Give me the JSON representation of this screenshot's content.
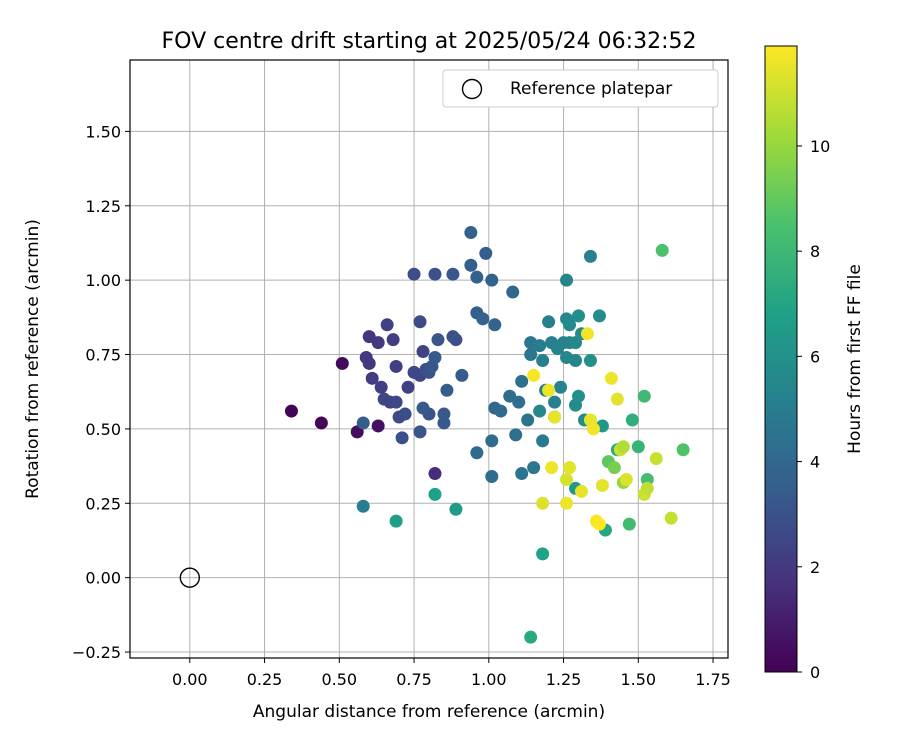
{
  "chart_data": {
    "type": "scatter",
    "title": "FOV centre drift starting at 2025/05/24 06:32:52",
    "xlabel": "Angular distance from reference (arcmin)",
    "ylabel": "Rotation from reference (arcmin)",
    "xlim": [
      -0.2,
      1.8
    ],
    "ylim": [
      -0.27,
      1.74
    ],
    "xticks": [
      0.0,
      0.25,
      0.5,
      0.75,
      1.0,
      1.25,
      1.5,
      1.75
    ],
    "xtick_labels": [
      "0.00",
      "0.25",
      "0.50",
      "0.75",
      "1.00",
      "1.25",
      "1.50",
      "1.75"
    ],
    "yticks": [
      -0.25,
      0.0,
      0.25,
      0.5,
      0.75,
      1.0,
      1.25,
      1.5
    ],
    "ytick_labels": [
      "−0.25",
      "0.00",
      "0.25",
      "0.50",
      "0.75",
      "1.00",
      "1.25",
      "1.50"
    ],
    "grid": true,
    "legend": {
      "position": "top-right",
      "entries": [
        {
          "label": "Reference platepar",
          "marker": "open-circle"
        }
      ]
    },
    "reference_point": {
      "x": 0.0,
      "y": 0.0
    },
    "colorbar": {
      "label": "Hours from first FF file",
      "colormap": "viridis",
      "min": 0,
      "max": 11.9,
      "ticks": [
        0,
        2,
        4,
        6,
        8,
        10
      ],
      "tick_labels": [
        "0",
        "2",
        "4",
        "6",
        "8",
        "10"
      ],
      "colors": [
        "#440154",
        "#46327e",
        "#365c8d",
        "#277f8e",
        "#1fa187",
        "#4ac16d",
        "#a0da39",
        "#fde725"
      ]
    },
    "points": [
      {
        "x": 0.34,
        "y": 0.56,
        "c": 0.1
      },
      {
        "x": 0.44,
        "y": 0.52,
        "c": 0.2
      },
      {
        "x": 0.51,
        "y": 0.72,
        "c": 0.3
      },
      {
        "x": 0.56,
        "y": 0.49,
        "c": 0.4
      },
      {
        "x": 0.63,
        "y": 0.51,
        "c": 0.6
      },
      {
        "x": 0.82,
        "y": 0.35,
        "c": 1.5
      },
      {
        "x": 0.6,
        "y": 0.81,
        "c": 1.8
      },
      {
        "x": 0.59,
        "y": 0.74,
        "c": 2.0
      },
      {
        "x": 0.6,
        "y": 0.72,
        "c": 1.9
      },
      {
        "x": 0.61,
        "y": 0.67,
        "c": 2.1
      },
      {
        "x": 0.64,
        "y": 0.64,
        "c": 2.2
      },
      {
        "x": 0.63,
        "y": 0.79,
        "c": 2.0
      },
      {
        "x": 0.66,
        "y": 0.85,
        "c": 2.3
      },
      {
        "x": 0.68,
        "y": 0.8,
        "c": 2.1
      },
      {
        "x": 0.65,
        "y": 0.6,
        "c": 2.5
      },
      {
        "x": 0.67,
        "y": 0.59,
        "c": 2.4
      },
      {
        "x": 0.69,
        "y": 0.59,
        "c": 2.6
      },
      {
        "x": 0.7,
        "y": 0.54,
        "c": 2.7
      },
      {
        "x": 0.72,
        "y": 0.55,
        "c": 2.8
      },
      {
        "x": 0.71,
        "y": 0.47,
        "c": 2.9
      },
      {
        "x": 0.69,
        "y": 0.71,
        "c": 2.2
      },
      {
        "x": 0.73,
        "y": 0.64,
        "c": 2.3
      },
      {
        "x": 0.75,
        "y": 0.69,
        "c": 2.6
      },
      {
        "x": 0.77,
        "y": 0.68,
        "c": 2.5
      },
      {
        "x": 0.78,
        "y": 0.76,
        "c": 2.4
      },
      {
        "x": 0.77,
        "y": 0.86,
        "c": 2.7
      },
      {
        "x": 0.79,
        "y": 0.7,
        "c": 2.9
      },
      {
        "x": 0.8,
        "y": 0.69,
        "c": 3.0
      },
      {
        "x": 0.81,
        "y": 0.71,
        "c": 3.2
      },
      {
        "x": 0.82,
        "y": 0.74,
        "c": 3.3
      },
      {
        "x": 0.83,
        "y": 0.8,
        "c": 3.1
      },
      {
        "x": 0.8,
        "y": 0.55,
        "c": 3.0
      },
      {
        "x": 0.78,
        "y": 0.57,
        "c": 3.3
      },
      {
        "x": 0.77,
        "y": 0.49,
        "c": 3.1
      },
      {
        "x": 0.75,
        "y": 1.02,
        "c": 2.8
      },
      {
        "x": 0.82,
        "y": 1.02,
        "c": 3.0
      },
      {
        "x": 0.88,
        "y": 1.02,
        "c": 3.2
      },
      {
        "x": 0.88,
        "y": 0.81,
        "c": 2.9
      },
      {
        "x": 0.89,
        "y": 0.8,
        "c": 3.0
      },
      {
        "x": 0.85,
        "y": 0.55,
        "c": 3.2
      },
      {
        "x": 0.85,
        "y": 0.52,
        "c": 3.3
      },
      {
        "x": 0.86,
        "y": 0.63,
        "c": 3.5
      },
      {
        "x": 0.91,
        "y": 0.68,
        "c": 3.4
      },
      {
        "x": 0.94,
        "y": 1.16,
        "c": 3.6
      },
      {
        "x": 0.94,
        "y": 1.05,
        "c": 3.5
      },
      {
        "x": 0.96,
        "y": 1.01,
        "c": 3.6
      },
      {
        "x": 0.99,
        "y": 1.09,
        "c": 3.5
      },
      {
        "x": 1.01,
        "y": 1.0,
        "c": 3.7
      },
      {
        "x": 0.96,
        "y": 0.89,
        "c": 3.6
      },
      {
        "x": 0.98,
        "y": 0.87,
        "c": 3.7
      },
      {
        "x": 1.02,
        "y": 0.85,
        "c": 3.8
      },
      {
        "x": 1.08,
        "y": 0.96,
        "c": 4.0
      },
      {
        "x": 1.02,
        "y": 0.57,
        "c": 4.0
      },
      {
        "x": 1.04,
        "y": 0.56,
        "c": 4.1
      },
      {
        "x": 1.07,
        "y": 0.61,
        "c": 4.2
      },
      {
        "x": 1.1,
        "y": 0.59,
        "c": 4.3
      },
      {
        "x": 1.11,
        "y": 0.66,
        "c": 4.4
      },
      {
        "x": 1.13,
        "y": 0.53,
        "c": 4.5
      },
      {
        "x": 1.09,
        "y": 0.48,
        "c": 4.3
      },
      {
        "x": 1.01,
        "y": 0.46,
        "c": 4.2
      },
      {
        "x": 0.96,
        "y": 0.42,
        "c": 4.1
      },
      {
        "x": 1.01,
        "y": 0.34,
        "c": 4.2
      },
      {
        "x": 1.11,
        "y": 0.35,
        "c": 4.6
      },
      {
        "x": 1.15,
        "y": 0.37,
        "c": 4.7
      },
      {
        "x": 1.18,
        "y": 0.46,
        "c": 4.8
      },
      {
        "x": 1.14,
        "y": 0.75,
        "c": 4.6
      },
      {
        "x": 1.14,
        "y": 0.79,
        "c": 4.7
      },
      {
        "x": 1.17,
        "y": 0.78,
        "c": 4.9
      },
      {
        "x": 1.18,
        "y": 0.73,
        "c": 5.0
      },
      {
        "x": 1.2,
        "y": 0.86,
        "c": 5.1
      },
      {
        "x": 1.21,
        "y": 0.79,
        "c": 5.0
      },
      {
        "x": 1.23,
        "y": 0.77,
        "c": 5.2
      },
      {
        "x": 1.25,
        "y": 0.79,
        "c": 5.3
      },
      {
        "x": 1.26,
        "y": 0.74,
        "c": 5.4
      },
      {
        "x": 1.27,
        "y": 0.79,
        "c": 5.3
      },
      {
        "x": 1.29,
        "y": 0.73,
        "c": 5.5
      },
      {
        "x": 1.29,
        "y": 0.79,
        "c": 5.6
      },
      {
        "x": 1.26,
        "y": 0.87,
        "c": 5.5
      },
      {
        "x": 1.27,
        "y": 0.85,
        "c": 5.7
      },
      {
        "x": 1.26,
        "y": 1.0,
        "c": 5.4
      },
      {
        "x": 1.34,
        "y": 1.08,
        "c": 5.2
      },
      {
        "x": 1.31,
        "y": 0.82,
        "c": 5.8
      },
      {
        "x": 1.3,
        "y": 0.88,
        "c": 5.9
      },
      {
        "x": 1.37,
        "y": 0.88,
        "c": 5.8
      },
      {
        "x": 1.34,
        "y": 0.73,
        "c": 6.0
      },
      {
        "x": 1.19,
        "y": 0.63,
        "c": 5.1
      },
      {
        "x": 1.22,
        "y": 0.59,
        "c": 5.2
      },
      {
        "x": 1.24,
        "y": 0.64,
        "c": 5.3
      },
      {
        "x": 1.22,
        "y": 0.54,
        "c": 5.5
      },
      {
        "x": 1.17,
        "y": 0.56,
        "c": 5.6
      },
      {
        "x": 1.29,
        "y": 0.58,
        "c": 5.7
      },
      {
        "x": 1.3,
        "y": 0.61,
        "c": 5.9
      },
      {
        "x": 1.32,
        "y": 0.53,
        "c": 5.8
      },
      {
        "x": 1.38,
        "y": 0.51,
        "c": 6.3
      },
      {
        "x": 1.29,
        "y": 0.3,
        "c": 6.4
      },
      {
        "x": 1.39,
        "y": 0.16,
        "c": 7.0
      },
      {
        "x": 1.43,
        "y": 0.43,
        "c": 7.3
      },
      {
        "x": 1.48,
        "y": 0.53,
        "c": 7.5
      },
      {
        "x": 1.5,
        "y": 0.44,
        "c": 7.8
      },
      {
        "x": 1.47,
        "y": 0.18,
        "c": 8.2
      },
      {
        "x": 1.52,
        "y": 0.61,
        "c": 8.0
      },
      {
        "x": 1.53,
        "y": 0.33,
        "c": 8.3
      },
      {
        "x": 1.58,
        "y": 1.1,
        "c": 8.5
      },
      {
        "x": 1.65,
        "y": 0.43,
        "c": 8.6
      },
      {
        "x": 1.18,
        "y": 0.08,
        "c": 6.9
      },
      {
        "x": 1.14,
        "y": -0.2,
        "c": 7.2
      },
      {
        "x": 0.82,
        "y": 0.28,
        "c": 6.8
      },
      {
        "x": 0.89,
        "y": 0.23,
        "c": 6.5
      },
      {
        "x": 0.69,
        "y": 0.19,
        "c": 6.7
      },
      {
        "x": 0.58,
        "y": 0.24,
        "c": 5.0
      },
      {
        "x": 0.58,
        "y": 0.52,
        "c": 3.4
      },
      {
        "x": 1.4,
        "y": 0.39,
        "c": 8.9
      },
      {
        "x": 1.42,
        "y": 0.37,
        "c": 9.4
      },
      {
        "x": 1.45,
        "y": 0.32,
        "c": 10.0
      },
      {
        "x": 1.15,
        "y": 0.68,
        "c": 11.8
      },
      {
        "x": 1.2,
        "y": 0.63,
        "c": 11.6
      },
      {
        "x": 1.22,
        "y": 0.54,
        "c": 11.5
      },
      {
        "x": 1.33,
        "y": 0.82,
        "c": 11.7
      },
      {
        "x": 1.41,
        "y": 0.67,
        "c": 11.6
      },
      {
        "x": 1.43,
        "y": 0.6,
        "c": 11.4
      },
      {
        "x": 1.34,
        "y": 0.53,
        "c": 11.5
      },
      {
        "x": 1.35,
        "y": 0.5,
        "c": 11.7
      },
      {
        "x": 1.21,
        "y": 0.37,
        "c": 11.6
      },
      {
        "x": 1.26,
        "y": 0.33,
        "c": 11.2
      },
      {
        "x": 1.27,
        "y": 0.37,
        "c": 11.4
      },
      {
        "x": 1.31,
        "y": 0.29,
        "c": 11.5
      },
      {
        "x": 1.18,
        "y": 0.25,
        "c": 11.3
      },
      {
        "x": 1.26,
        "y": 0.25,
        "c": 11.6
      },
      {
        "x": 1.38,
        "y": 0.31,
        "c": 11.4
      },
      {
        "x": 1.36,
        "y": 0.19,
        "c": 11.8
      },
      {
        "x": 1.37,
        "y": 0.18,
        "c": 11.9
      },
      {
        "x": 1.44,
        "y": 0.43,
        "c": 11.0
      },
      {
        "x": 1.46,
        "y": 0.33,
        "c": 11.3
      },
      {
        "x": 1.52,
        "y": 0.28,
        "c": 11.0
      },
      {
        "x": 1.53,
        "y": 0.3,
        "c": 10.8
      },
      {
        "x": 1.56,
        "y": 0.4,
        "c": 10.9
      },
      {
        "x": 1.61,
        "y": 0.2,
        "c": 10.9
      },
      {
        "x": 1.45,
        "y": 0.44,
        "c": 10.5
      }
    ]
  }
}
